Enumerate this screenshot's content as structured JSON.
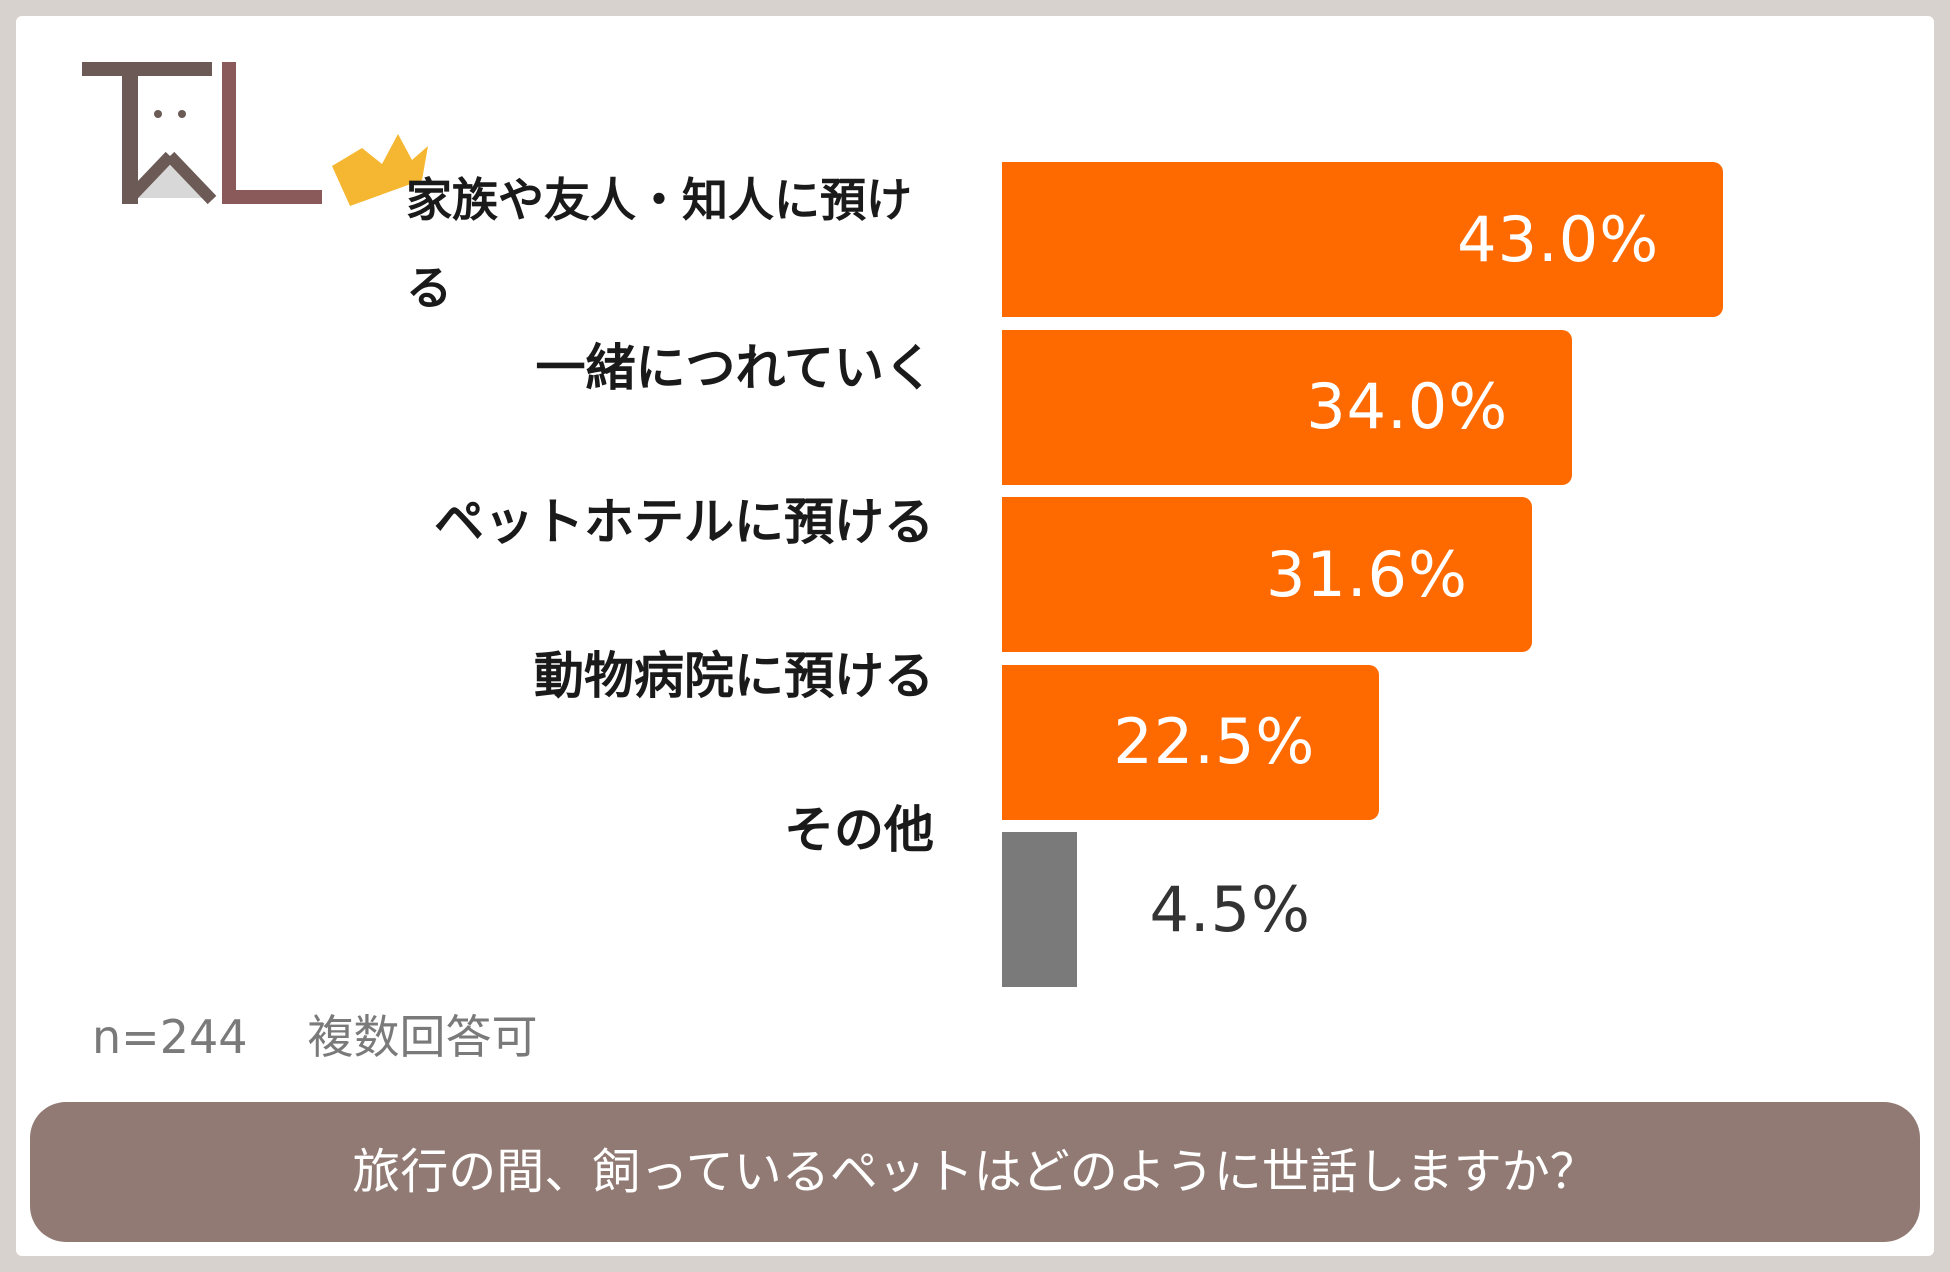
{
  "logo": {
    "text": "TAL"
  },
  "chart_data": {
    "type": "bar",
    "orientation": "horizontal",
    "categories": [
      "家族や友人・知人に預ける",
      "一緒につれていく",
      "ペットホテルに預ける",
      "動物病院に預ける",
      "その他"
    ],
    "values": [
      43.0,
      34.0,
      31.6,
      22.5,
      4.5
    ],
    "value_labels": [
      "43.0%",
      "34.0%",
      "31.6%",
      "22.5%",
      "4.5%"
    ],
    "bar_colors": [
      "#ff6a00",
      "#ff6a00",
      "#ff6a00",
      "#ff6a00",
      "#7a7a7a"
    ],
    "xlim": [
      0,
      50
    ],
    "grid": false,
    "legend": "none",
    "title": "旅行の間、飼っているペットはどのように世話しますか？"
  },
  "note": {
    "sample": "n=244",
    "type": "複数回答可"
  },
  "colors": {
    "accent": "#ff6a00",
    "other": "#7a7a7a",
    "banner": "#917a73"
  }
}
